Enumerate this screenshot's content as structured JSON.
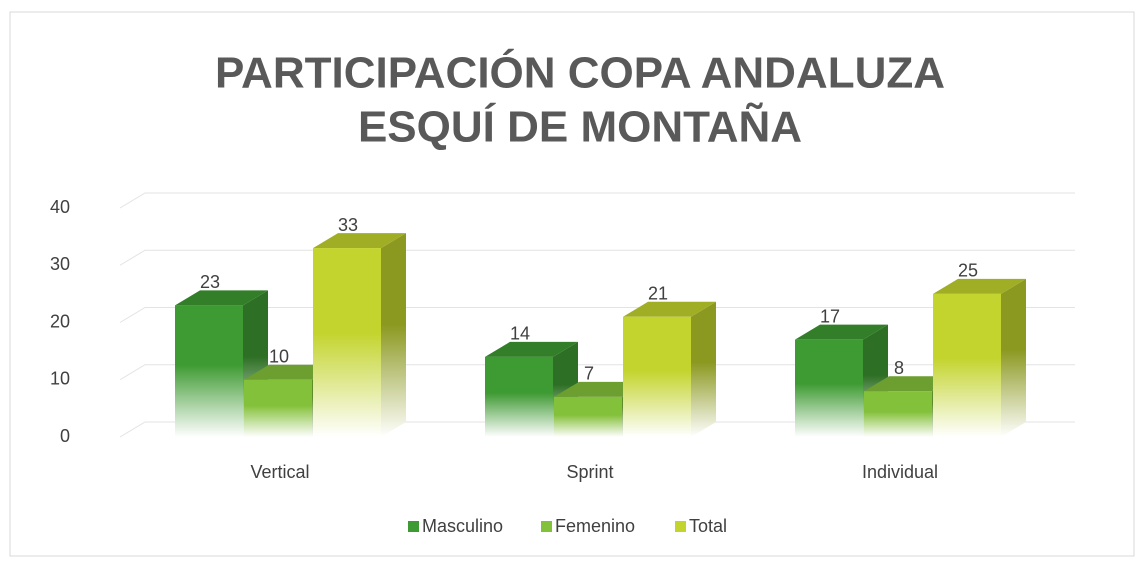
{
  "chart_data": {
    "type": "bar3d",
    "title": [
      "PARTICIPACIÓN COPA ANDALUZA",
      "ESQUÍ DE MONTAÑA"
    ],
    "categories": [
      "Vertical",
      "Sprint",
      "Individual"
    ],
    "series": [
      {
        "name": "Masculino",
        "color": "#3e9a32",
        "values": [
          23,
          14,
          17
        ]
      },
      {
        "name": "Femenino",
        "color": "#84c13a",
        "values": [
          10,
          7,
          8
        ]
      },
      {
        "name": "Total",
        "color": "#c3d42e",
        "values": [
          33,
          21,
          25
        ]
      }
    ],
    "ylim": [
      0,
      40
    ],
    "yticks": [
      0,
      10,
      20,
      30,
      40
    ],
    "grid": true,
    "legend": "bottom"
  }
}
